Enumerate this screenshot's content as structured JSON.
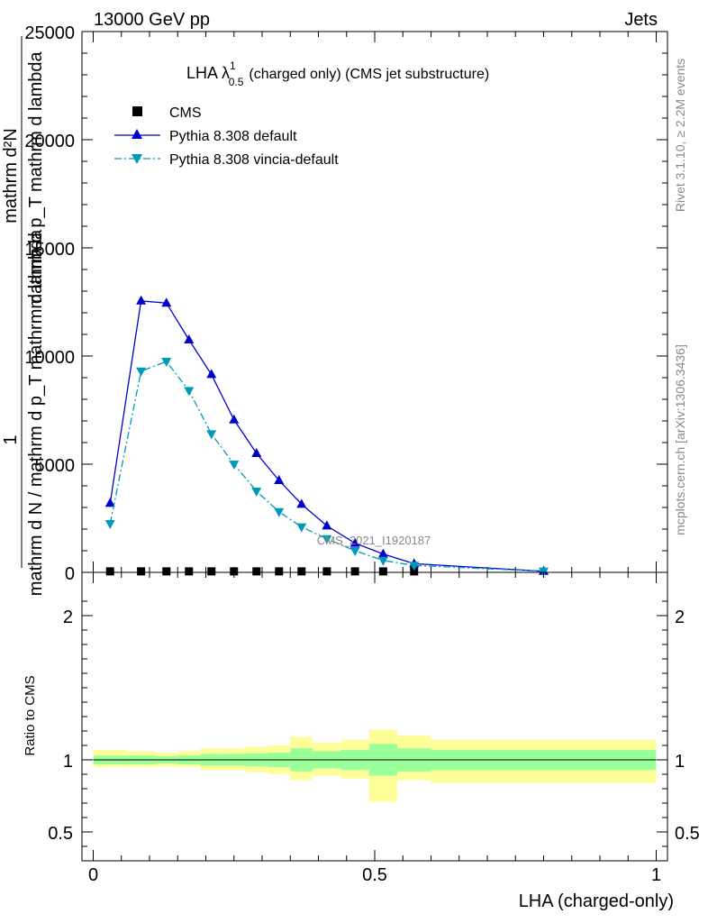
{
  "header": {
    "energy_label": "13000 GeV pp",
    "process_label": "Jets"
  },
  "side_notes": {
    "rivet": "Rivet 3.1.10, ≥ 2.2M events",
    "mcplots": "mcplots.cern.ch [arXiv:1306.3436]"
  },
  "chart_data": [
    {
      "type": "line",
      "title": "LHA λ¹₀.₅ (charged only) (CMS jet substructure)",
      "title_main": "LHA λ",
      "title_sup": "1",
      "title_sub": "0.5",
      "title_rest": "(charged only) (CMS jet substructure)",
      "watermark": "CMS_2021_I1920187",
      "ylabel_top": "1",
      "ylabel_mid": "mathrm d N / mathrm d p_T mathrm d lambda",
      "ylabel_frac_num": "mathrm d²N",
      "ylabel_frac_den": "mathrm d p_T mathrm d lambda",
      "ylim": [
        0,
        25000
      ],
      "xlim": [
        -0.02,
        1.02
      ],
      "y_ticks": [
        0,
        5000,
        10000,
        15000,
        20000,
        25000
      ],
      "y_tick_labels": [
        "0",
        "5000",
        "10000",
        "15000",
        "20000",
        "25000"
      ],
      "legend_position": "top-left",
      "series": [
        {
          "name": "CMS",
          "marker": "square",
          "color": "#000000",
          "x": [
            0.03,
            0.085,
            0.13,
            0.17,
            0.21,
            0.25,
            0.29,
            0.33,
            0.37,
            0.415,
            0.465,
            0.515,
            0.57
          ],
          "y": [
            25,
            25,
            25,
            25,
            25,
            25,
            25,
            25,
            25,
            25,
            25,
            25,
            25
          ]
        },
        {
          "name": "Pythia 8.308 default",
          "marker": "triangle-up",
          "line": "solid",
          "color": "#0000cc",
          "x": [
            0.03,
            0.085,
            0.13,
            0.17,
            0.21,
            0.25,
            0.29,
            0.33,
            0.37,
            0.415,
            0.465,
            0.515,
            0.57,
            0.8
          ],
          "y": [
            3200,
            12550,
            12450,
            10750,
            9150,
            7050,
            5500,
            4250,
            3150,
            2150,
            1350,
            850,
            400,
            50
          ]
        },
        {
          "name": "Pythia 8.308 vincia-default",
          "marker": "triangle-down",
          "line": "dashdot",
          "color": "#0099bb",
          "x": [
            0.03,
            0.085,
            0.13,
            0.17,
            0.21,
            0.25,
            0.29,
            0.33,
            0.37,
            0.415,
            0.465,
            0.515,
            0.57,
            0.8
          ],
          "y": [
            2250,
            9300,
            9750,
            8400,
            6400,
            5000,
            3750,
            2800,
            2100,
            1550,
            1000,
            550,
            320,
            50
          ]
        }
      ]
    },
    {
      "type": "area",
      "xlabel": "LHA (charged-only)",
      "ylabel": "Ratio to CMS",
      "ylim": [
        0.3,
        2.3
      ],
      "y_ticks": [
        0.5,
        1,
        2
      ],
      "y_tick_labels": [
        "0.5",
        "1",
        "2"
      ],
      "x_ticks": [
        0,
        0.5,
        1
      ],
      "x_tick_labels": [
        "0",
        "0.5",
        "1"
      ],
      "bands": {
        "bin_edges": [
          0,
          0.06,
          0.11,
          0.15,
          0.19,
          0.23,
          0.27,
          0.31,
          0.35,
          0.39,
          0.44,
          0.49,
          0.54,
          0.6,
          1.0
        ],
        "inner_up": [
          1.03,
          1.03,
          1.025,
          1.03,
          1.04,
          1.04,
          1.045,
          1.05,
          1.08,
          1.06,
          1.07,
          1.11,
          1.08,
          1.07
        ],
        "inner_down": [
          0.97,
          0.97,
          0.975,
          0.97,
          0.96,
          0.96,
          0.955,
          0.95,
          0.92,
          0.94,
          0.93,
          0.89,
          0.92,
          0.93
        ],
        "outer_up": [
          1.07,
          1.06,
          1.05,
          1.06,
          1.08,
          1.08,
          1.09,
          1.1,
          1.16,
          1.12,
          1.14,
          1.21,
          1.17,
          1.14
        ],
        "outer_down": [
          0.95,
          0.95,
          0.955,
          0.95,
          0.93,
          0.93,
          0.915,
          0.9,
          0.86,
          0.89,
          0.87,
          0.71,
          0.86,
          0.84
        ],
        "inner_color": "#99ff99",
        "outer_color": "#ffff99"
      }
    }
  ]
}
